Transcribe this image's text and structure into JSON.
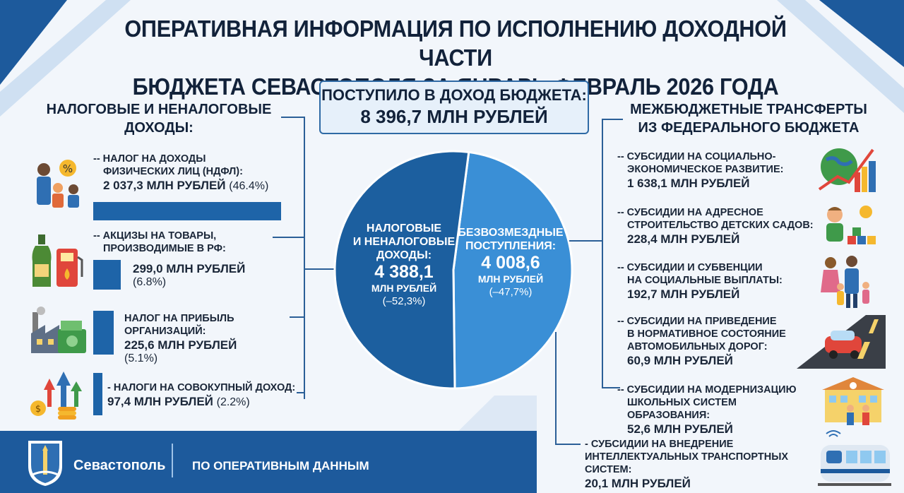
{
  "header": {
    "title_line1": "ОПЕРАТИВНАЯ ИНФОРМАЦИЯ ПО ИСПОЛНЕНИЮ ДОХОДНОЙ ЧАСТИ",
    "title_line2": "БЮДЖЕТА СЕВАСТОПОЛЯ  ЗА ЯНВАРЬ-ФЕВРАЛЬ 2026 ГОДА"
  },
  "total": {
    "label": "ПОСТУПИЛО В ДОХОД БЮДЖЕТА:",
    "value": "8 396,7 МЛН РУБЛЕЙ"
  },
  "left": {
    "heading_line1": "НАЛОГОВЫЕ И НЕНАЛОГОВЫЕ",
    "heading_line2": "ДОХОДЫ:",
    "items": [
      {
        "line1": "-- НАЛОГ НА ДОХОДЫ",
        "line2": "ФИЗИЧЕСКИХ ЛИЦ (НДФЛ):",
        "value": "2 037,3 МЛН РУБЛЕЙ",
        "pct": "(46.4%)",
        "icon": "people-percent-icon"
      },
      {
        "line1": "-- АКЦИЗЫ НА ТОВАРЫ,",
        "line2": "ПРОИЗВОДИМЫЕ В РФ:",
        "value": "299,0 МЛН РУБЛЕЙ",
        "pct": "(6.8%)",
        "icon": "bottle-fuel-icon"
      },
      {
        "line1": "НАЛОГ НА ПРИБЫЛЬ ОРГАНИЗАЦИЙ:",
        "value": "225,6 МЛН РУБЛЕЙ",
        "pct": "(5.1%)",
        "icon": "factory-money-icon"
      },
      {
        "line1": "- НАЛОГИ НА СОВОКУПНЫЙ ДОХОД:",
        "value": "97,4 МЛН РУБЛЕЙ",
        "pct": "(2.2%)",
        "icon": "coins-arrows-icon"
      }
    ]
  },
  "right": {
    "heading_line1": "МЕЖБЮДЖЕТНЫЕ ТРАНСФЕРТЫ",
    "heading_line2": "ИЗ ФЕДЕРАЛЬНОГО БЮДЖЕТА",
    "items": [
      {
        "line1": "-- СУБСИДИИ НА СОЦИАЛЬНО-",
        "line2": "ЭКОНОМИЧЕСКОЕ РАЗВИТИЕ:",
        "value": "1 638,1 МЛН РУБЛЕЙ",
        "icon": "globe-growth-icon"
      },
      {
        "line1": "-- СУБСИДИИ НА АДРЕСНОЕ",
        "line2": "СТРОИТЕЛЬСТВО ДЕТСКИХ САДОВ:",
        "value": "228,4 МЛН РУБЛЕЙ",
        "icon": "child-blocks-icon"
      },
      {
        "line1": "-- СУБСИДИИ И СУБВЕНЦИИ",
        "line2": "НА СОЦИАЛЬНЫЕ ВЫПЛАТЫ:",
        "value": "192,7 МЛН РУБЛЕЙ",
        "icon": "family-icon"
      },
      {
        "line1": "-- СУБСИДИИ НА ПРИВЕДЕНИЕ",
        "line2": "В НОРМАТИВНОЕ СОСТОЯНИЕ",
        "line3": "АВТОМОБИЛЬНЫХ ДОРОГ:",
        "value": "60,9 МЛН РУБЛЕЙ",
        "icon": "car-road-icon"
      },
      {
        "line1": "-- СУБСИДИИ НА МОДЕРНИЗАЦИЮ",
        "line2": "ШКОЛЬНЫХ СИСТЕМ ОБРАЗОВАНИЯ:",
        "value": "52,6 МЛН РУБЛЕЙ",
        "icon": "school-icon"
      },
      {
        "line1": "- СУБСИДИИ НА ВНЕДРЕНИЕ",
        "line2": "ИНТЕЛЛЕКТУАЛЬНЫХ ТРАНСПОРТНЫХ СИСТЕМ:",
        "value": "20,1 МЛН РУБЛЕЙ",
        "icon": "tram-icon"
      }
    ]
  },
  "chart_data": [
    {
      "type": "pie",
      "title": "",
      "slices": [
        {
          "label_line1": "НАЛОГОВЫЕ",
          "label_line2": "И НЕНАЛОГОВЫЕ",
          "label_line3": "ДОХОДЫ:",
          "value": 4388.1,
          "value_text": "4 388,1",
          "unit": "МЛН РУБЛЕЙ",
          "change": "(–52,3%)",
          "color": "#1c5f9f"
        },
        {
          "label_line1": "БЕЗВОЗМЕЗДНЫЕ",
          "label_line2": "ПОСТУПЛЕНИЯ:",
          "value": 4008.6,
          "value_text": "4 008,6",
          "unit": "МЛН РУБЛЕЙ",
          "change": "(–47,7%)",
          "color": "#3a8fd6"
        }
      ]
    },
    {
      "type": "bar",
      "title": "",
      "categories": [
        "НДФЛ",
        "АКЦИЗЫ",
        "НАЛОГ НА ПРИБЫЛЬ",
        "НАЛОГИ НА СОВОКУПНЫЙ ДОХОД"
      ],
      "values": [
        2037.3,
        299.0,
        225.6,
        97.4
      ],
      "color": "#1e64a8"
    }
  ],
  "footer": {
    "city": "Севастополь",
    "note": "ПО ОПЕРАТИВНЫМ ДАННЫМ",
    "logo_icon": "sevastopol-coat-of-arms-icon"
  }
}
